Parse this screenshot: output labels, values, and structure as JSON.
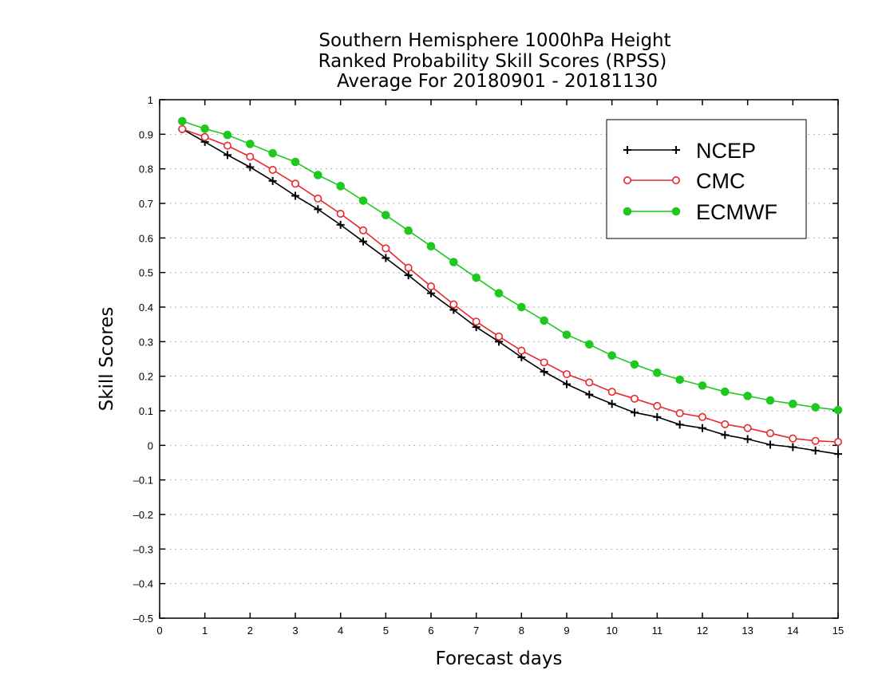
{
  "chart_data": {
    "type": "line",
    "title_lines": [
      "Southern Hemisphere 1000hPa Height",
      "Ranked Probability Skill Scores (RPSS)",
      "Average For 20180901 - 20181130"
    ],
    "xlabel": "Forecast days",
    "ylabel": "Skill Scores",
    "xlim": [
      0,
      15
    ],
    "ylim": [
      -0.5,
      1
    ],
    "x_ticks": [
      0,
      1,
      2,
      3,
      4,
      5,
      6,
      7,
      8,
      9,
      10,
      11,
      12,
      13,
      14,
      15
    ],
    "y_ticks": [
      -0.5,
      -0.4,
      -0.3,
      -0.2,
      -0.1,
      0,
      0.1,
      0.2,
      0.3,
      0.4,
      0.5,
      0.6,
      0.7,
      0.8,
      0.9,
      1
    ],
    "x_tick_labels": [
      "0",
      "1",
      "2",
      "3",
      "4",
      "5",
      "6",
      "7",
      "8",
      "9",
      "10",
      "11",
      "12",
      "13",
      "14",
      "15"
    ],
    "y_tick_labels": [
      "–0.5",
      "–0.4",
      "–0.3",
      "–0.2",
      "–0.1",
      "0",
      "0.1",
      "0.2",
      "0.3",
      "0.4",
      "0.5",
      "0.6",
      "0.7",
      "0.8",
      "0.9",
      "1"
    ],
    "grid": "horizontal dotted",
    "legend_position": "top-right",
    "x": [
      0.5,
      1,
      1.5,
      2,
      2.5,
      3,
      3.5,
      4,
      4.5,
      5,
      5.5,
      6,
      6.5,
      7,
      7.5,
      8,
      8.5,
      9,
      9.5,
      10,
      10.5,
      11,
      11.5,
      12,
      12.5,
      13,
      13.5,
      14,
      14.5,
      15
    ],
    "series": [
      {
        "name": "NCEP",
        "color": "#000000",
        "marker": "plus",
        "values": [
          0.915,
          0.878,
          0.84,
          0.805,
          0.765,
          0.722,
          0.683,
          0.638,
          0.59,
          0.542,
          0.492,
          0.44,
          0.392,
          0.342,
          0.3,
          0.255,
          0.213,
          0.177,
          0.147,
          0.12,
          0.095,
          0.082,
          0.06,
          0.05,
          0.03,
          0.018,
          0.002,
          -0.005,
          -0.015,
          -0.025
        ]
      },
      {
        "name": "CMC",
        "color": "#e8282b",
        "marker": "open-circle",
        "values": [
          0.915,
          0.892,
          0.867,
          0.835,
          0.797,
          0.757,
          0.714,
          0.67,
          0.622,
          0.57,
          0.514,
          0.46,
          0.408,
          0.358,
          0.315,
          0.274,
          0.24,
          0.206,
          0.182,
          0.155,
          0.135,
          0.114,
          0.093,
          0.082,
          0.061,
          0.05,
          0.035,
          0.02,
          0.013,
          0.01
        ]
      },
      {
        "name": "ECMWF",
        "color": "#1ec81e",
        "marker": "filled-circle",
        "values": [
          0.938,
          0.916,
          0.898,
          0.872,
          0.845,
          0.82,
          0.782,
          0.75,
          0.708,
          0.666,
          0.621,
          0.576,
          0.53,
          0.485,
          0.44,
          0.4,
          0.361,
          0.32,
          0.292,
          0.26,
          0.234,
          0.21,
          0.19,
          0.173,
          0.155,
          0.143,
          0.13,
          0.12,
          0.11,
          0.102
        ]
      }
    ]
  }
}
